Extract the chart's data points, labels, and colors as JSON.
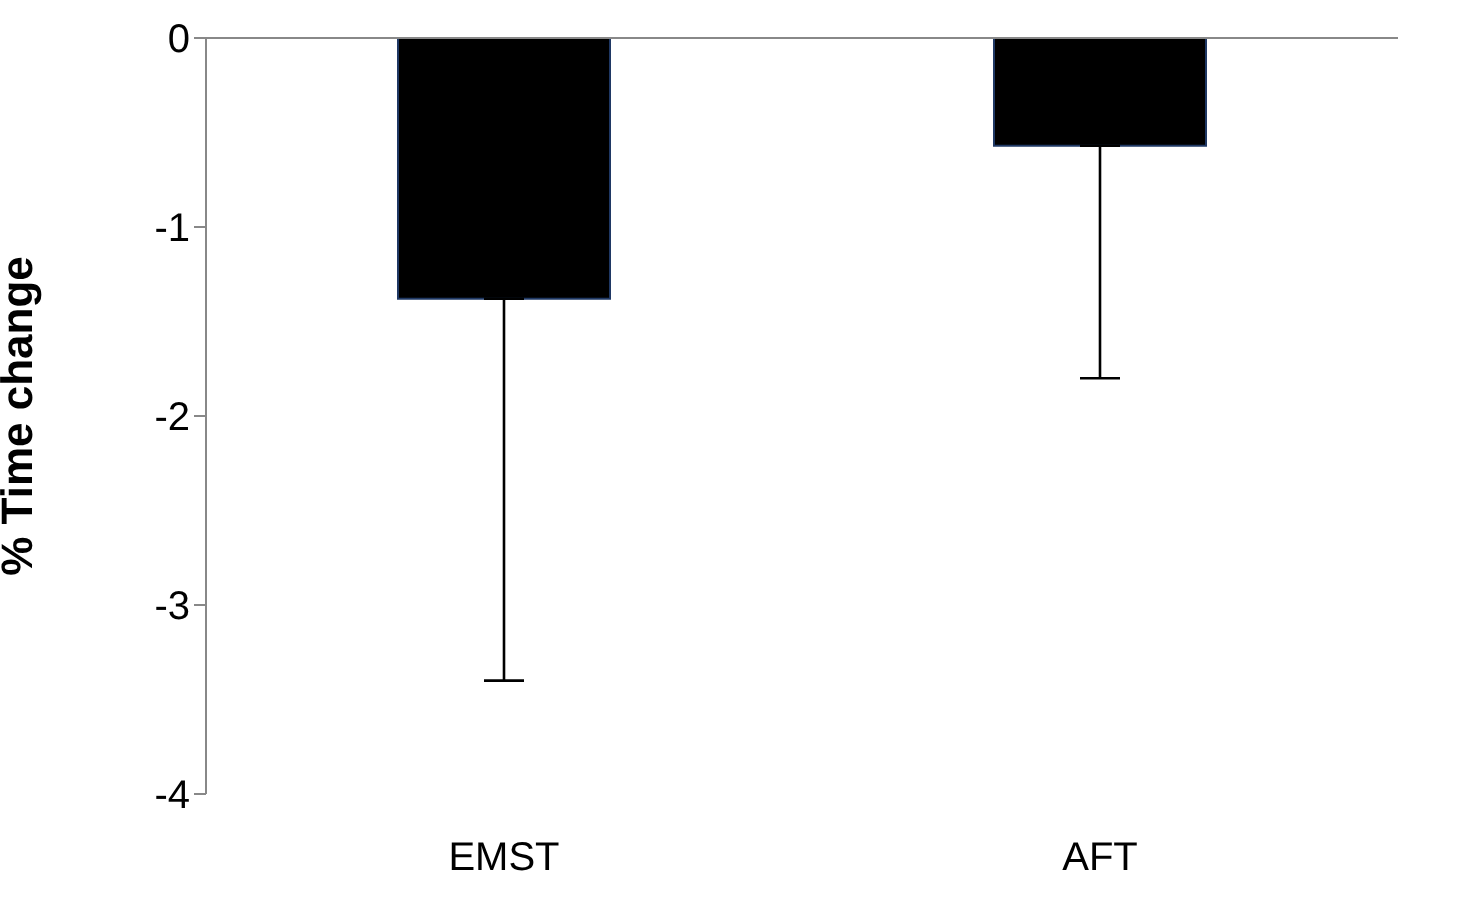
{
  "chart_data": {
    "type": "bar",
    "ylabel": "% Time change",
    "categories": [
      "EMST",
      "AFT"
    ],
    "values": [
      -1.38,
      -0.57
    ],
    "color": "#000000",
    "errors": [
      [
        -3.4,
        -1.38
      ],
      [
        -1.8,
        -0.57
      ]
    ],
    "ylim": [
      -4,
      0
    ],
    "yticks": [
      -4,
      -3,
      -2,
      -1,
      0
    ]
  }
}
